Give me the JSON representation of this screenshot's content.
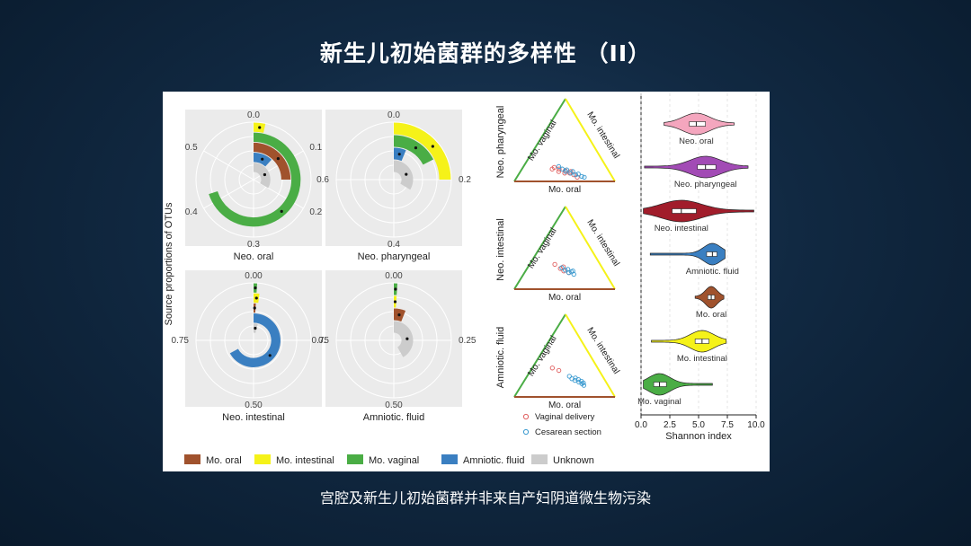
{
  "slide": {
    "title": "新生儿初始菌群的多样性 （II）",
    "caption": "宫腔及新生儿初始菌群并非来自产妇阴道微生物污染"
  },
  "colors": {
    "Mo. oral": "#a0522d",
    "Mo. intestinal": "#f5f219",
    "Mo. vaginal": "#4aad45",
    "Amniotic. fluid": "#3a7fc1",
    "Unknown": "#cccccc"
  },
  "chart_data": [
    {
      "type": "polar-bar",
      "panel": "source-proportions",
      "ylabel": "Source proportions of OTUs",
      "legend": [
        "Mo. oral",
        "Mo. intestinal",
        "Mo. vaginal",
        "Amniotic. fluid",
        "Unknown"
      ],
      "legend_position": "bottom",
      "subplots": [
        {
          "title": "Neo. oral",
          "max": 0.6,
          "ticks": [
            {
              "label": "0.0",
              "v": 0
            },
            {
              "label": "0.1",
              "v": 0.1
            },
            {
              "label": "0.2",
              "v": 0.2
            },
            {
              "label": "0.3",
              "v": 0.3
            },
            {
              "label": "0.4",
              "v": 0.4
            },
            {
              "label": "0.5",
              "v": 0.5
            }
          ],
          "bars": [
            {
              "source": "Mo. intestinal",
              "value": 0.02
            },
            {
              "source": "Mo. vaginal",
              "value": 0.42
            },
            {
              "source": "Mo. oral",
              "value": 0.15
            },
            {
              "source": "Amniotic. fluid",
              "value": 0.07
            },
            {
              "source": "Unknown",
              "value": 0.2
            }
          ]
        },
        {
          "title": "Neo. pharyngeal",
          "max": 0.8,
          "ticks": [
            {
              "label": "0.0",
              "v": 0
            },
            {
              "label": "0.2",
              "v": 0.2
            },
            {
              "label": "0.4",
              "v": 0.4
            },
            {
              "label": "0.6",
              "v": 0.6
            }
          ],
          "bars": [
            {
              "source": "Mo. intestinal",
              "value": 0.2
            },
            {
              "source": "Mo. vaginal",
              "value": 0.14
            },
            {
              "source": "Amniotic. fluid",
              "value": 0.05
            },
            {
              "source": "Unknown",
              "value": 0.27
            }
          ]
        },
        {
          "title": "Neo. intestinal",
          "max": 1.0,
          "ticks": [
            {
              "label": "0.00",
              "v": 0
            },
            {
              "label": "0.25",
              "v": 0.25
            },
            {
              "label": "0.50",
              "v": 0.5
            },
            {
              "label": "0.75",
              "v": 0.75
            }
          ],
          "bars": [
            {
              "source": "Mo. vaginal",
              "value": 0.01
            },
            {
              "source": "Mo. intestinal",
              "value": 0.02
            },
            {
              "source": "Mo. oral",
              "value": 0.01
            },
            {
              "source": "Amniotic. fluid",
              "value": 0.67
            },
            {
              "source": "Unknown",
              "value": 0.04
            }
          ]
        },
        {
          "title": "Amniotic. fluid",
          "max": 1.0,
          "ticks": [
            {
              "label": "0.00",
              "v": 0
            },
            {
              "label": "0.25",
              "v": 0.25
            },
            {
              "label": "0.50",
              "v": 0.5
            },
            {
              "label": "0.75",
              "v": 0.75
            }
          ],
          "bars": [
            {
              "source": "Mo. vaginal",
              "value": 0.01
            },
            {
              "source": "Mo. intestinal",
              "value": 0.01
            },
            {
              "source": "Mo. oral",
              "value": 0.06
            },
            {
              "source": "Unknown",
              "value": 0.42
            }
          ]
        }
      ]
    },
    {
      "type": "ternary",
      "panel": "ternary-plots",
      "side_labels": {
        "left": "Mo. vaginal",
        "right": "Mo. intestinal",
        "bottom": "Mo. oral"
      },
      "legend": [
        {
          "label": "Vaginal delivery",
          "color": "#e06060"
        },
        {
          "label": "Cesarean section",
          "color": "#3a9ad0"
        }
      ],
      "subplots": [
        {
          "title": "Neo. pharyngeal",
          "points": {
            "Vaginal delivery": [
              [
                0.15,
                0.55,
                0.3
              ],
              [
                0.17,
                0.52,
                0.31
              ],
              [
                0.12,
                0.5,
                0.38
              ],
              [
                0.15,
                0.48,
                0.37
              ],
              [
                0.1,
                0.45,
                0.45
              ],
              [
                0.13,
                0.43,
                0.44
              ],
              [
                0.1,
                0.4,
                0.5
              ],
              [
                0.12,
                0.38,
                0.5
              ],
              [
                0.08,
                0.37,
                0.55
              ],
              [
                0.05,
                0.35,
                0.6
              ]
            ],
            "Cesarean section": [
              [
                0.18,
                0.47,
                0.35
              ],
              [
                0.15,
                0.45,
                0.4
              ],
              [
                0.12,
                0.43,
                0.45
              ],
              [
                0.14,
                0.41,
                0.45
              ],
              [
                0.1,
                0.39,
                0.51
              ],
              [
                0.12,
                0.36,
                0.52
              ],
              [
                0.08,
                0.35,
                0.57
              ],
              [
                0.09,
                0.32,
                0.59
              ],
              [
                0.06,
                0.3,
                0.64
              ],
              [
                0.05,
                0.28,
                0.67
              ]
            ]
          }
        },
        {
          "title": "Neo. intestinal",
          "points": {
            "Vaginal delivery": [
              [
                0.3,
                0.45,
                0.25
              ],
              [
                0.25,
                0.42,
                0.33
              ],
              [
                0.22,
                0.4,
                0.38
              ],
              [
                0.27,
                0.38,
                0.35
              ],
              [
                0.2,
                0.36,
                0.44
              ]
            ],
            "Cesarean section": [
              [
                0.26,
                0.4,
                0.34
              ],
              [
                0.23,
                0.38,
                0.39
              ],
              [
                0.2,
                0.36,
                0.44
              ],
              [
                0.24,
                0.35,
                0.41
              ],
              [
                0.21,
                0.33,
                0.46
              ],
              [
                0.18,
                0.32,
                0.5
              ],
              [
                0.22,
                0.31,
                0.47
              ]
            ]
          }
        },
        {
          "title": "Amniotic. fluid",
          "points": {
            "Vaginal delivery": [
              [
                0.35,
                0.45,
                0.2
              ],
              [
                0.32,
                0.4,
                0.28
              ]
            ],
            "Cesarean section": [
              [
                0.25,
                0.33,
                0.42
              ],
              [
                0.22,
                0.32,
                0.46
              ],
              [
                0.2,
                0.3,
                0.5
              ],
              [
                0.23,
                0.28,
                0.49
              ],
              [
                0.18,
                0.27,
                0.55
              ],
              [
                0.21,
                0.26,
                0.53
              ],
              [
                0.16,
                0.25,
                0.59
              ],
              [
                0.19,
                0.24,
                0.57
              ],
              [
                0.14,
                0.24,
                0.62
              ],
              [
                0.17,
                0.23,
                0.6
              ]
            ]
          }
        }
      ]
    },
    {
      "type": "violin",
      "panel": "shannon-index",
      "xlabel": "Shannon index",
      "xlim": [
        0,
        10
      ],
      "xticks": [
        "0.0",
        "2.5",
        "5.0",
        "7.5",
        "10.0"
      ],
      "groups": [
        {
          "name": "Neo. oral",
          "color": "#f4a6be",
          "min": 2.0,
          "max": 8.1,
          "q1": 4.2,
          "median": 4.8,
          "q3": 5.6
        },
        {
          "name": "Neo. pharyngeal",
          "color": "#a24bb5",
          "min": 0.3,
          "max": 9.3,
          "q1": 4.9,
          "median": 5.6,
          "q3": 6.5
        },
        {
          "name": "Neo. intestinal",
          "color": "#a11d2b",
          "min": 0.2,
          "max": 9.8,
          "q1": 2.7,
          "median": 3.5,
          "q3": 4.8
        },
        {
          "name": "Amniotic. fluid",
          "color": "#3a7fc1",
          "min": 0.8,
          "max": 7.3,
          "q1": 5.7,
          "median": 6.2,
          "q3": 6.6
        },
        {
          "name": "Mo. oral",
          "color": "#a0522d",
          "min": 4.7,
          "max": 7.2,
          "q1": 5.8,
          "median": 6.1,
          "q3": 6.4
        },
        {
          "name": "Mo. intestinal",
          "color": "#f5f219",
          "min": 0.9,
          "max": 7.4,
          "q1": 4.7,
          "median": 5.3,
          "q3": 5.9
        },
        {
          "name": "Mo. vaginal",
          "color": "#4aad45",
          "min": 0.2,
          "max": 6.2,
          "q1": 1.1,
          "median": 1.6,
          "q3": 2.2
        }
      ]
    }
  ]
}
